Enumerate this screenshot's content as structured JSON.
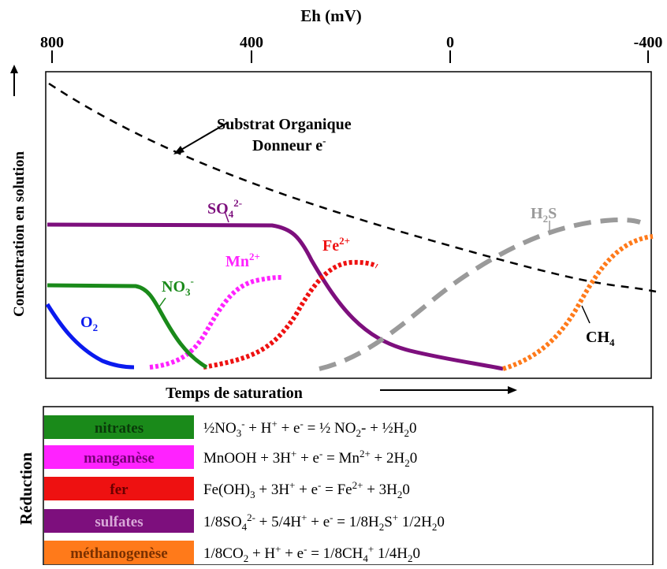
{
  "axis_top": {
    "title": "Eh (mV)",
    "ticks": [
      "800",
      "400",
      "0",
      "-400"
    ]
  },
  "y_axis_label": "Concentration en solution",
  "x_axis_label": "Temps de saturation",
  "curve_labels": {
    "substrat_line1": "Substrat Organique",
    "substrat_line2": "Donneur",
    "substrat_e": "e",
    "substrat_sup": "-",
    "so4": "SO",
    "so4_sub": "4",
    "so4_sup": "2-",
    "h2s_h": "H",
    "h2s_sub": "2",
    "h2s_s": "S",
    "fe": "Fe",
    "fe_sup": "2+",
    "mn": "Mn",
    "mn_sup": "2+",
    "no3": "NO",
    "no3_sub": "3",
    "no3_sup": "-",
    "o2": "O",
    "o2_sub": "2",
    "ch4": "CH",
    "ch4_sub": "4"
  },
  "reduction": {
    "title": "Réduction",
    "rows": [
      {
        "name": "nitrates",
        "color": "#1a8a1a",
        "text_color": "#0a3a0a",
        "eq": [
          [
            "½NO",
            ""
          ],
          [
            "3",
            "sub"
          ],
          [
            "-",
            "sup"
          ],
          [
            " + H",
            ""
          ],
          [
            "+",
            "sup"
          ],
          [
            " + e",
            ""
          ],
          [
            "-",
            "sup"
          ],
          [
            " = ½ NO",
            ""
          ],
          [
            "2",
            "sub"
          ],
          [
            "- + ½H",
            ""
          ],
          [
            "2",
            "sub"
          ],
          [
            "0",
            ""
          ]
        ]
      },
      {
        "name": "manganèse",
        "color": "#ff22ff",
        "text_color": "#7a007a",
        "eq": [
          [
            "MnOOH + 3H",
            ""
          ],
          [
            "+",
            "sup"
          ],
          [
            " + e",
            ""
          ],
          [
            "-",
            "sup"
          ],
          [
            " = Mn",
            ""
          ],
          [
            "2+",
            "sup"
          ],
          [
            " + 2H",
            ""
          ],
          [
            "2",
            "sub"
          ],
          [
            "0",
            ""
          ]
        ]
      },
      {
        "name": "fer",
        "color": "#ee1111",
        "text_color": "#6a0000",
        "eq": [
          [
            "Fe(OH)",
            ""
          ],
          [
            "3",
            "sub"
          ],
          [
            " + 3H",
            ""
          ],
          [
            "+",
            "sup"
          ],
          [
            " + e",
            ""
          ],
          [
            "-",
            "sup"
          ],
          [
            " = Fe",
            ""
          ],
          [
            "2+",
            "sup"
          ],
          [
            " + 3H",
            ""
          ],
          [
            "2",
            "sub"
          ],
          [
            "0",
            ""
          ]
        ]
      },
      {
        "name": "sulfates",
        "color": "#7d0f7d",
        "text_color": "#d8a8d8",
        "eq": [
          [
            "1/8SO",
            ""
          ],
          [
            "4",
            "sub"
          ],
          [
            "2-",
            "sup"
          ],
          [
            " + 5/4H",
            ""
          ],
          [
            "+",
            "sup"
          ],
          [
            " + e",
            ""
          ],
          [
            "-",
            "sup"
          ],
          [
            " = 1/8H",
            ""
          ],
          [
            "2",
            "sub"
          ],
          [
            "S",
            ""
          ],
          [
            "+",
            "sup"
          ],
          [
            " 1/2H",
            ""
          ],
          [
            "2",
            "sub"
          ],
          [
            "0",
            ""
          ]
        ]
      },
      {
        "name": "méthanogenèse",
        "color": "#ff7a1a",
        "text_color": "#7a3000",
        "eq": [
          [
            "1/8CO",
            ""
          ],
          [
            "2",
            "sub"
          ],
          [
            " + H",
            ""
          ],
          [
            "+",
            "sup"
          ],
          [
            " + e",
            ""
          ],
          [
            "-",
            "sup"
          ],
          [
            " = 1/8CH",
            ""
          ],
          [
            "4",
            "sub"
          ],
          [
            "+",
            "sup"
          ],
          [
            " 1/4H",
            ""
          ],
          [
            "2",
            "sub"
          ],
          [
            "0",
            ""
          ]
        ]
      }
    ]
  },
  "colors": {
    "o2": "#0a1aee",
    "no3": "#1a8a1a",
    "mn": "#ff22ff",
    "fe": "#ee1111",
    "so4": "#7d0f7d",
    "h2s": "#9a9a9a",
    "ch4": "#ff7a1a",
    "substrat": "#000000"
  }
}
